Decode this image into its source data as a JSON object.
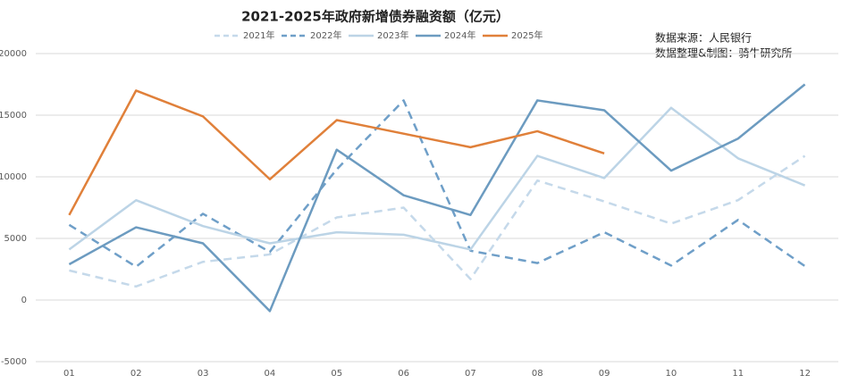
{
  "chart_data": {
    "type": "line",
    "title": "2021-2025年政府新增债券融资额（亿元）",
    "annotations": [
      "数据来源：人民银行",
      "数据整理&制图：骑牛研究所"
    ],
    "categories": [
      "01",
      "02",
      "03",
      "04",
      "05",
      "06",
      "07",
      "08",
      "09",
      "10",
      "11",
      "12"
    ],
    "ylim": [
      -5000,
      20000
    ],
    "yticks": [
      -5000,
      0,
      5000,
      10000,
      15000,
      20000
    ],
    "grid": true,
    "legend": "top",
    "series": [
      {
        "name": "2021年",
        "color": "#c5d9ea",
        "dashed": true,
        "values": [
          2400,
          1100,
          3100,
          3700,
          6700,
          7500,
          1700,
          9700,
          8000,
          6200,
          8100,
          11700
        ]
      },
      {
        "name": "2022年",
        "color": "#6f9fc8",
        "dashed": true,
        "values": [
          6100,
          2700,
          7000,
          3900,
          10600,
          16200,
          4000,
          3000,
          5500,
          2800,
          6500,
          2750
        ]
      },
      {
        "name": "2023年",
        "color": "#bcd4e6",
        "dashed": false,
        "values": [
          4100,
          8100,
          6000,
          4600,
          5500,
          5300,
          4100,
          11700,
          9900,
          15600,
          11500,
          9300
        ]
      },
      {
        "name": "2024年",
        "color": "#6c9bc0",
        "dashed": false,
        "values": [
          2900,
          5900,
          4600,
          -900,
          12200,
          8500,
          6900,
          16200,
          15400,
          10500,
          13100,
          17500
        ]
      },
      {
        "name": "2025年",
        "color": "#e0803a",
        "dashed": false,
        "values": [
          6900,
          17000,
          14900,
          9800,
          14600,
          13500,
          12400,
          13700,
          11900,
          null,
          null,
          null
        ]
      }
    ]
  }
}
